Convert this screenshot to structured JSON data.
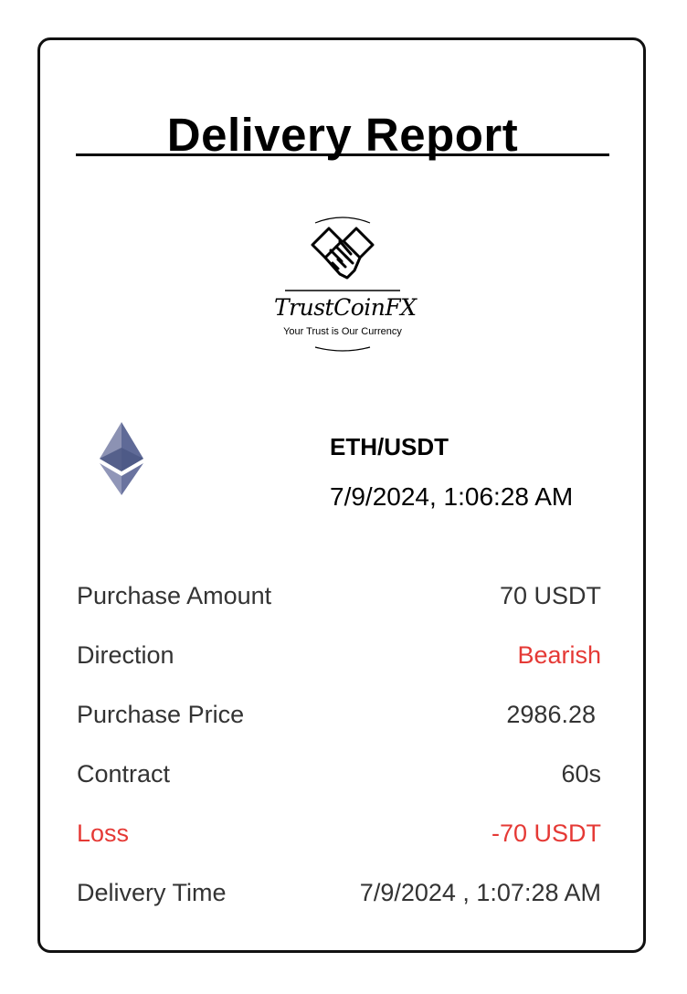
{
  "report": {
    "title": "Delivery Report"
  },
  "logo": {
    "name": "TrustCoinFX",
    "tagline": "Your Trust is Our Currency",
    "icon": "handshake-icon"
  },
  "trade": {
    "coin_icon": "ethereum-icon",
    "pair": "ETH/USDT",
    "datetime": "7/9/2024, 1:06:28 AM"
  },
  "details": [
    {
      "label": "Purchase Amount",
      "value": "70 USDT"
    },
    {
      "label": "Direction",
      "value": "Bearish"
    },
    {
      "label": "Purchase Price",
      "value": "2986.28"
    },
    {
      "label": "Contract",
      "value": "60s"
    },
    {
      "label": "Loss",
      "value": "-70 USDT"
    },
    {
      "label": "Delivery Time",
      "value": "7/9/2024 , 1:07:28 AM"
    }
  ],
  "colors": {
    "loss": "#e53935",
    "text": "#333333"
  }
}
